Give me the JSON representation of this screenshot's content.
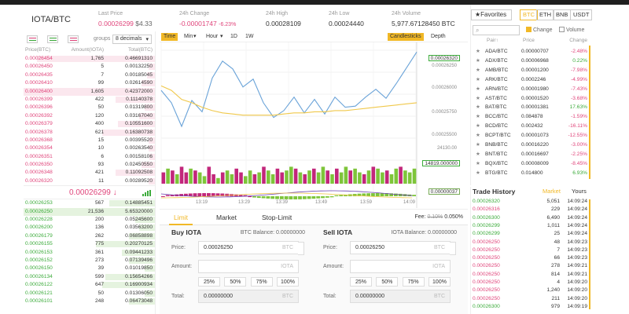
{
  "header": {
    "pair": "IOTA/BTC",
    "last_price_label": "Last Price",
    "last_price": "0.00026299",
    "last_price_usd": "$4.33",
    "change_label": "24h Change",
    "change_value": "-0.00001747",
    "change_pct": "-6.23%",
    "high_label": "24h High",
    "high_value": "0.00028109",
    "low_label": "24h Low",
    "low_value": "0.00024440",
    "volume_label": "24h Volume",
    "volume_value": "5,977.67128450 BTC"
  },
  "book": {
    "groups_label": "groups",
    "groups_value": "8 decimals",
    "col_price": "Price(BTC)",
    "col_amount": "Amount(IOTA)",
    "col_total": "Total(BTC)",
    "asks": [
      {
        "p": "0.00026454",
        "a": "1,765",
        "t": "0.46691310",
        "w": 0.9
      },
      {
        "p": "0.00026450",
        "a": "5",
        "t": "0.00132250",
        "w": 0.05
      },
      {
        "p": "0.00026435",
        "a": "7",
        "t": "0.00185045",
        "w": 0.06
      },
      {
        "p": "0.00026410",
        "a": "99",
        "t": "0.02614590",
        "w": 0.1
      },
      {
        "p": "0.00026400",
        "a": "1,605",
        "t": "0.42372000",
        "w": 1.0,
        "hl": true
      },
      {
        "p": "0.00026399",
        "a": "422",
        "t": "0.11140378",
        "w": 0.3
      },
      {
        "p": "0.00026396",
        "a": "50",
        "t": "0.01319800",
        "w": 0.08
      },
      {
        "p": "0.00026392",
        "a": "120",
        "t": "0.03167040",
        "w": 0.12
      },
      {
        "p": "0.00026379",
        "a": "400",
        "t": "0.10551600",
        "w": 0.28
      },
      {
        "p": "0.00026378",
        "a": "621",
        "t": "0.16380738",
        "w": 0.4
      },
      {
        "p": "0.00026368",
        "a": "15",
        "t": "0.00395520",
        "w": 0.05
      },
      {
        "p": "0.00026354",
        "a": "10",
        "t": "0.00263540",
        "w": 0.05
      },
      {
        "p": "0.00026351",
        "a": "6",
        "t": "0.00158106",
        "w": 0.04
      },
      {
        "p": "0.00026350",
        "a": "93",
        "t": "0.02450550",
        "w": 0.1
      },
      {
        "p": "0.00026348",
        "a": "421",
        "t": "0.11092508",
        "w": 0.3
      },
      {
        "p": "0.00026320",
        "a": "11",
        "t": "0.00289520",
        "w": 0.05
      }
    ],
    "last": "0.00026299 ↓",
    "bids": [
      {
        "p": "0.00026253",
        "a": "567",
        "t": "0.14885451",
        "w": 0.35
      },
      {
        "p": "0.00026250",
        "a": "21,536",
        "t": "5.65320000",
        "w": 1.0,
        "hl": true
      },
      {
        "p": "0.00026228",
        "a": "200",
        "t": "0.05245600",
        "w": 0.15
      },
      {
        "p": "0.00026200",
        "a": "136",
        "t": "0.03563200",
        "w": 0.12
      },
      {
        "p": "0.00026179",
        "a": "262",
        "t": "0.06858898",
        "w": 0.2
      },
      {
        "p": "0.00026155",
        "a": "775",
        "t": "0.20270125",
        "w": 0.45
      },
      {
        "p": "0.00026153",
        "a": "361",
        "t": "0.09441233",
        "w": 0.25
      },
      {
        "p": "0.00026152",
        "a": "273",
        "t": "0.07139496",
        "w": 0.2
      },
      {
        "p": "0.00026150",
        "a": "39",
        "t": "0.01019850",
        "w": 0.08
      },
      {
        "p": "0.00026134",
        "a": "599",
        "t": "0.15654266",
        "w": 0.38
      },
      {
        "p": "0.00026122",
        "a": "647",
        "t": "0.16900934",
        "w": 0.4
      },
      {
        "p": "0.00026121",
        "a": "50",
        "t": "0.01306050",
        "w": 0.08
      },
      {
        "p": "0.00026101",
        "a": "248",
        "t": "0.06473048",
        "w": 0.2
      }
    ]
  },
  "chart": {
    "tools": [
      "Time",
      "Min",
      "Hour",
      "1D",
      "1W"
    ],
    "candlesticks": "Candlesticks",
    "depth": "Depth",
    "price_tag": "0.00026320",
    "axis_labels": [
      "0.00026250",
      "0.00026000",
      "0.00025750",
      "0.00025500"
    ],
    "volume_top": "24130.00",
    "volume_tag": "14819.000000",
    "macd_tag": "0.00000037",
    "times": [
      "13:19",
      "13:29",
      "13:39",
      "13:49",
      "13:59",
      "14:09"
    ]
  },
  "chart_data": {
    "type": "line",
    "series": [
      {
        "values": [
          0.0002598,
          0.0002587,
          0.0002566,
          0.0002589,
          0.0002579,
          0.0002609,
          0.0002624,
          0.0002617,
          0.0002601,
          0.0002608,
          0.0002587,
          0.0002574,
          0.000258,
          0.0002592,
          0.0002578,
          0.000259,
          0.0002577,
          0.0002592,
          0.0002583,
          0.0002584,
          0.0002592,
          0.0002599,
          0.0002591,
          0.0002604,
          0.0002618,
          0.0002632
        ]
      },
      {
        "values": [
          0.0002602,
          0.0002598,
          0.000259,
          0.0002587,
          0.0002583,
          0.000258,
          0.0002578,
          0.0002577,
          0.0002576,
          0.0002576,
          0.0002576,
          0.0002576,
          0.0002577,
          0.0002578,
          0.0002578,
          0.0002579,
          0.0002579,
          0.000258,
          0.000258,
          0.0002581,
          0.0002582,
          0.0002583,
          0.0002584,
          0.0002585,
          0.0002586,
          0.0002587
        ]
      }
    ],
    "volume": [
      0.6,
      0.8,
      0.7,
      0.5,
      0.9,
      0.6,
      0.8,
      0.7,
      0.6,
      0.4,
      0.9,
      0.5,
      0.3,
      0.6,
      0.7,
      0.5,
      0.8,
      0.6,
      0.4,
      0.7,
      0.5,
      0.6,
      0.9,
      0.7,
      0.5,
      0.8,
      0.6,
      0.7,
      0.9,
      0.8,
      0.6,
      0.5,
      0.7,
      0.8,
      0.6,
      0.9,
      0.7,
      0.5,
      0.8,
      0.6,
      0.9,
      0.7,
      0.8,
      0.6,
      0.5,
      0.7,
      0.9,
      0.8,
      0.6,
      0.7,
      0.5,
      0.8,
      0.9,
      0.7,
      0.6,
      0.8
    ],
    "volume_up": [
      false,
      true,
      false,
      true,
      false,
      false,
      true,
      false,
      true,
      true,
      false,
      false,
      true,
      false,
      true,
      true,
      false,
      false,
      true,
      true,
      false,
      true,
      false,
      true,
      true,
      false,
      false,
      true,
      true,
      false,
      true,
      false,
      true,
      false,
      true,
      true,
      false,
      true,
      false,
      true,
      true,
      false,
      true,
      true,
      false,
      true,
      false,
      true,
      true,
      false,
      true,
      true,
      false,
      true,
      true,
      true
    ]
  },
  "form": {
    "tabs": [
      "Limit",
      "Market",
      "Stop-Limit"
    ],
    "fee_label": "Fee:",
    "fee_old": "0.10%",
    "fee_new": "0.050%",
    "buy": {
      "title": "Buy IOTA",
      "balance": "BTC Balance: 0.00000000",
      "price_label": "Price:",
      "price": "0.00026250",
      "price_unit": "BTC",
      "amount_label": "Amount:",
      "amount_unit": "IOTA",
      "pcts": [
        "25%",
        "50%",
        "75%",
        "100%"
      ],
      "total_label": "Total:",
      "total": "0.00000000",
      "total_unit": "BTC"
    },
    "sell": {
      "title": "Sell IOTA",
      "balance": "IOTA Balance: 0.00000000",
      "price_label": "Price:",
      "price": "0.00026250",
      "price_unit": "BTC",
      "amount_label": "Amount:",
      "amount_unit": "IOTA",
      "pcts": [
        "25%",
        "50%",
        "75%",
        "100%"
      ],
      "total_label": "Total:",
      "total": "0.00000000",
      "total_unit": "BTC"
    }
  },
  "market": {
    "favorites": "★Favorites",
    "tabs": [
      "BTC",
      "ETH",
      "BNB",
      "USDT"
    ],
    "opt_change": "Change",
    "opt_volume": "Volume",
    "col_pair": "Pair↑",
    "col_price": "Price",
    "col_change": "Change",
    "rows": [
      {
        "pair": "ADA/BTC",
        "price": "0.00000707",
        "change": "-2.48%",
        "up": false
      },
      {
        "pair": "ADX/BTC",
        "price": "0.00006968",
        "change": "0.22%",
        "up": true
      },
      {
        "pair": "AMB/BTC",
        "price": "0.00001200",
        "change": "-7.98%",
        "up": false
      },
      {
        "pair": "ARK/BTC",
        "price": "0.0002246",
        "change": "-4.99%",
        "up": false
      },
      {
        "pair": "ARN/BTC",
        "price": "0.00001980",
        "change": "-7.43%",
        "up": false
      },
      {
        "pair": "AST/BTC",
        "price": "0.00001520",
        "change": "-3.68%",
        "up": false
      },
      {
        "pair": "BAT/BTC",
        "price": "0.00001381",
        "change": "17.63%",
        "up": true
      },
      {
        "pair": "BCC/BTC",
        "price": "0.084878",
        "change": "-1.59%",
        "up": false
      },
      {
        "pair": "BCD/BTC",
        "price": "0.002432",
        "change": "-16.11%",
        "up": false
      },
      {
        "pair": "BCPT/BTC",
        "price": "0.00001073",
        "change": "-12.55%",
        "up": false
      },
      {
        "pair": "BNB/BTC",
        "price": "0.00016220",
        "change": "-3.00%",
        "up": false
      },
      {
        "pair": "BNT/BTC",
        "price": "0.00016697",
        "change": "-2.25%",
        "up": false
      },
      {
        "pair": "BQX/BTC",
        "price": "0.00008009",
        "change": "-8.45%",
        "up": false
      },
      {
        "pair": "BTG/BTC",
        "price": "0.014800",
        "change": "6.93%",
        "up": true
      }
    ]
  },
  "history": {
    "title": "Trade History",
    "tab_market": "Market",
    "tab_yours": "Yours",
    "rows": [
      {
        "p": "0.00026320",
        "a": "5,051",
        "t": "14:09:24",
        "up": true
      },
      {
        "p": "0.00026316",
        "a": "229",
        "t": "14:09:24",
        "up": false
      },
      {
        "p": "0.00026300",
        "a": "6,490",
        "t": "14:09:24",
        "up": true
      },
      {
        "p": "0.00026299",
        "a": "1,011",
        "t": "14:09:24",
        "up": true
      },
      {
        "p": "0.00026299",
        "a": "25",
        "t": "14:09:24",
        "up": true
      },
      {
        "p": "0.00026250",
        "a": "48",
        "t": "14:09:23",
        "up": false
      },
      {
        "p": "0.00026250",
        "a": "7",
        "t": "14:09:23",
        "up": false
      },
      {
        "p": "0.00026250",
        "a": "66",
        "t": "14:09:23",
        "up": false
      },
      {
        "p": "0.00026250",
        "a": "278",
        "t": "14:09:21",
        "up": false
      },
      {
        "p": "0.00026250",
        "a": "814",
        "t": "14:09:21",
        "up": false
      },
      {
        "p": "0.00026250",
        "a": "4",
        "t": "14:09:20",
        "up": false
      },
      {
        "p": "0.00026250",
        "a": "1,240",
        "t": "14:09:20",
        "up": false
      },
      {
        "p": "0.00026250",
        "a": "211",
        "t": "14:09:20",
        "up": false
      },
      {
        "p": "0.00026300",
        "a": "979",
        "t": "14:09:19",
        "up": true
      }
    ]
  }
}
